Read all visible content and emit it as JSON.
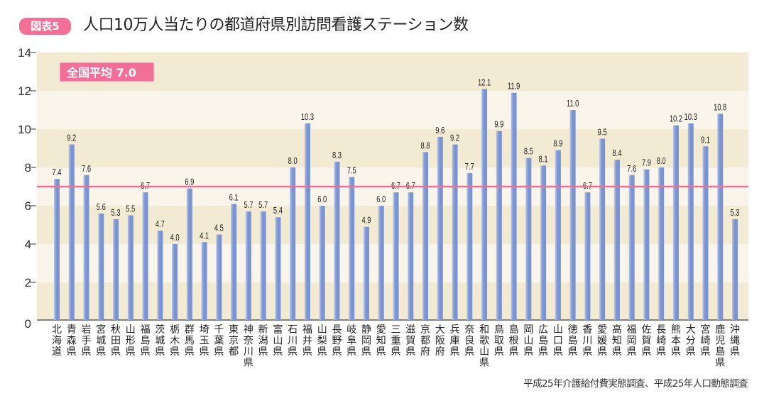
{
  "header": {
    "badge": "図表5",
    "title": "人口10万人当たりの都道府県別訪問看護ステーション数"
  },
  "source": "平成25年介護給付費実態調査、平成25年人口動態調査",
  "colors": {
    "bar": "#7b93d0",
    "bar_light": "#b5c5ea",
    "average_line": "#f26f97",
    "badge": "#f26f97",
    "band_dark": "#f3ead4",
    "band_light": "#faf5ea"
  },
  "chart_data": {
    "type": "bar",
    "title": "人口10万人当たりの都道府県別訪問看護ステーション数",
    "xlabel": "",
    "ylabel": "",
    "ylim": [
      0,
      14
    ],
    "yticks": [
      0,
      2,
      4,
      6,
      8,
      10,
      12,
      14
    ],
    "grid": "alternating bands",
    "average": {
      "label": "全国平均",
      "value": 7.0,
      "display": "7.0"
    },
    "categories": [
      "北海道",
      "青森県",
      "岩手県",
      "宮城県",
      "秋田県",
      "山形県",
      "福島県",
      "茨城県",
      "栃木県",
      "群馬県",
      "埼玉県",
      "千葉県",
      "東京都",
      "神奈川県",
      "新潟県",
      "富山県",
      "石川県",
      "福井県",
      "山梨県",
      "長野県",
      "岐阜県",
      "静岡県",
      "愛知県",
      "三重県",
      "滋賀県",
      "京都府",
      "大阪府",
      "兵庫県",
      "奈良県",
      "和歌山県",
      "鳥取県",
      "島根県",
      "岡山県",
      "広島県",
      "山口県",
      "徳島県",
      "香川県",
      "愛媛県",
      "高知県",
      "福岡県",
      "佐賀県",
      "長崎県",
      "熊本県",
      "大分県",
      "宮崎県",
      "鹿児島県",
      "沖縄県"
    ],
    "values": [
      7.4,
      9.2,
      7.6,
      5.6,
      5.3,
      5.5,
      6.7,
      4.7,
      4.0,
      6.9,
      4.1,
      4.5,
      6.1,
      5.7,
      5.7,
      5.4,
      8.0,
      10.3,
      6.0,
      8.3,
      7.5,
      4.9,
      6.0,
      6.7,
      6.7,
      8.8,
      9.6,
      9.2,
      7.7,
      12.1,
      9.9,
      11.9,
      8.5,
      8.1,
      8.9,
      11.0,
      6.7,
      9.5,
      8.4,
      7.6,
      7.9,
      8.0,
      10.2,
      10.3,
      9.1,
      10.8,
      5.3
    ],
    "value_labels": [
      "7.4",
      "9.2",
      "7.6",
      "5.6",
      "5.3",
      "5.5",
      "6.7",
      "4.7",
      "4.0",
      "6.9",
      "4.1",
      "4.5",
      "6.1",
      "5.7",
      "5.7",
      "5.4",
      "8.0",
      "10.3",
      "6.0",
      "8.3",
      "7.5",
      "4.9",
      "6.0",
      "6.7",
      "6.7",
      "8.8",
      "9.6",
      "9.2",
      "7.7",
      "12.1",
      "9.9",
      "11.9",
      "8.5",
      "8.1",
      "8.9",
      "11.0",
      "6.7",
      "9.5",
      "8.4",
      "7.6",
      "7.9",
      "8.0",
      "10.2",
      "10.3",
      "9.1",
      "10.8",
      "5.3"
    ]
  }
}
